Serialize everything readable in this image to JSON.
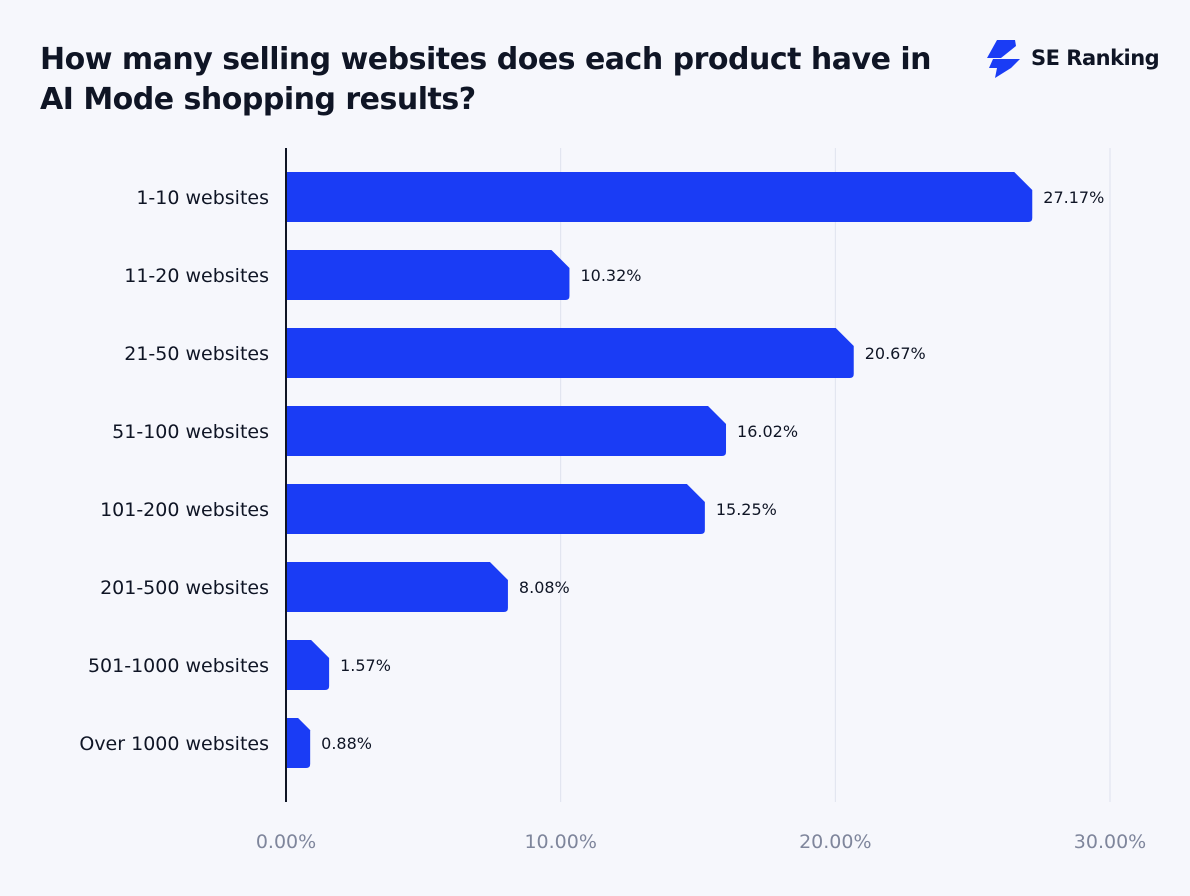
{
  "brand": {
    "name": "SE Ranking",
    "color": "#1a3cf5"
  },
  "chart_data": {
    "type": "bar",
    "orientation": "horizontal",
    "title": "How many selling websites does each product have in AI Mode shopping results?",
    "categories": [
      "1-10 websites",
      "11-20 websites",
      "21-50 websites",
      "51-100 websites",
      "101-200 websites",
      "201-500 websites",
      "501-1000 websites",
      "Over 1000 websites"
    ],
    "values": [
      27.17,
      10.32,
      20.67,
      16.02,
      15.25,
      8.08,
      1.57,
      0.88
    ],
    "data_labels": [
      "27.17%",
      "10.32%",
      "20.67%",
      "16.02%",
      "15.25%",
      "8.08%",
      "1.57%",
      "0.88%"
    ],
    "xlim": [
      0,
      30
    ],
    "x_ticks": [
      0,
      10,
      20,
      30
    ],
    "x_tick_labels": [
      "0.00%",
      "10.00%",
      "20.00%",
      "30.00%"
    ],
    "grid": true,
    "bar_color": "#1a3cf5"
  }
}
